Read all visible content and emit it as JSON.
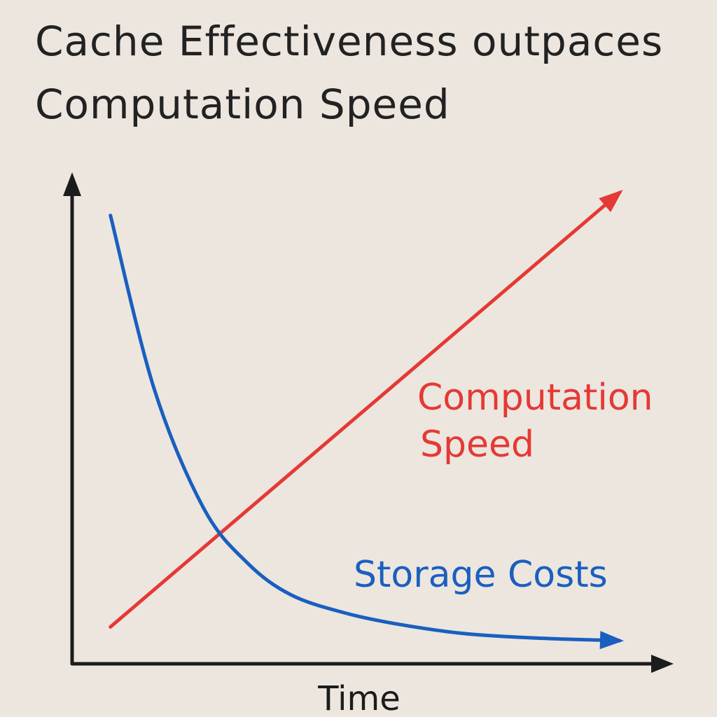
{
  "chart_data": {
    "type": "line",
    "title": "Cache Effectiveness outpaces Computation Speed",
    "xlabel": "Time",
    "ylabel": "",
    "xlim": [
      0,
      100
    ],
    "ylim": [
      0,
      100
    ],
    "grid": false,
    "axes_style": "hand-drawn arrows",
    "series": [
      {
        "name": "Computation Speed",
        "color": "#e53935",
        "shape": "linear-increasing",
        "x": [
          7,
          100
        ],
        "y": [
          5,
          100
        ]
      },
      {
        "name": "Storage Costs",
        "color": "#1a5fbf",
        "shape": "exponential-decay",
        "x": [
          7,
          15,
          24,
          32,
          40,
          50,
          60,
          72,
          86,
          100
        ],
        "y": [
          95,
          57,
          31,
          19,
          12,
          8,
          5.5,
          3.5,
          2.5,
          2
        ]
      }
    ]
  }
}
